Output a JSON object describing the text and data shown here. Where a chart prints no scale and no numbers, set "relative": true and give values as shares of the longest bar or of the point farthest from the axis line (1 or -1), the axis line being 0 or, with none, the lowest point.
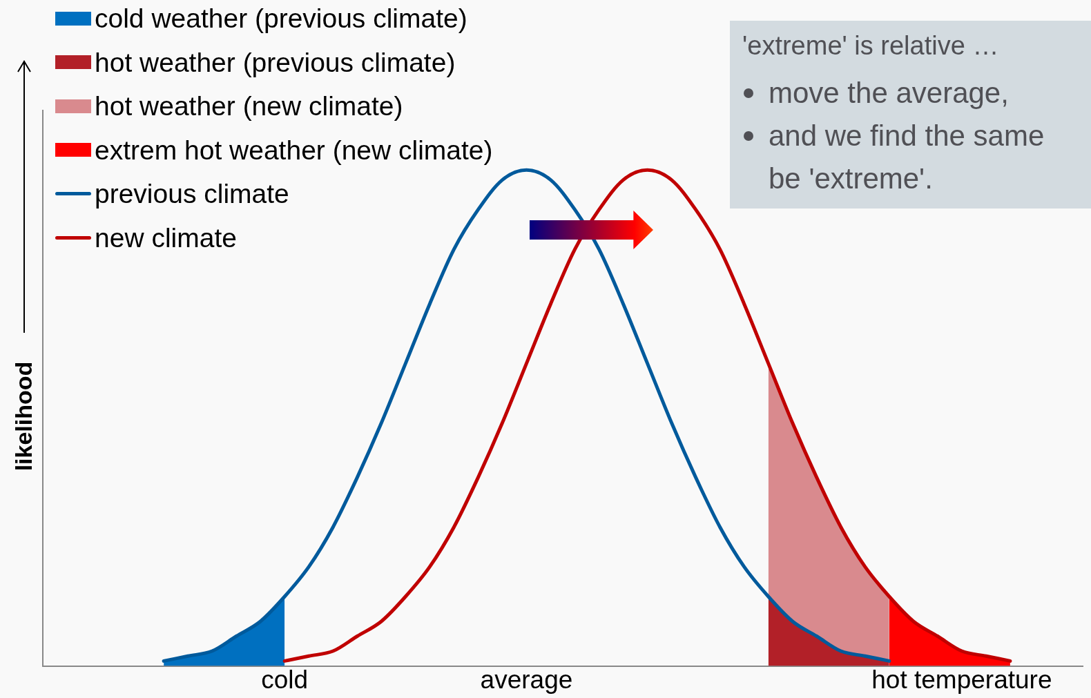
{
  "chart_data": {
    "type": "line",
    "xlabel": null,
    "ylabel": "likelihood",
    "relative": true,
    "legend": "top left",
    "grid": false,
    "marker": "none",
    "line_style": "solid",
    "categories": [
      null,
      null,
      null,
      null,
      null,
      null,
      null,
      null,
      null,
      null,
      "cold",
      null,
      null,
      null,
      null,
      null,
      null,
      null,
      null,
      null,
      "average",
      null,
      null,
      null,
      null,
      null,
      null,
      null,
      null,
      null,
      null,
      null,
      null,
      null,
      null,
      null,
      null,
      null,
      "hot temperature",
      null,
      null,
      null,
      null,
      null
    ],
    "series": [
      {
        "name": "cold weather (previous climate)",
        "type": "area",
        "color": "#0070c0",
        "values": [
          null,
          null,
          null,
          null,
          null,
          0.01,
          0.02,
          0.03,
          0.06,
          0.09,
          0.14,
          null,
          null,
          null,
          null,
          null,
          null,
          null,
          null,
          null,
          null,
          null,
          null,
          null,
          null,
          null,
          null,
          null,
          null,
          null,
          null,
          null,
          null,
          null,
          null,
          null,
          null,
          null,
          null,
          null,
          null,
          null,
          null,
          null
        ]
      },
      {
        "name": "hot weather (previous climate)",
        "type": "area",
        "color": "#b22028",
        "values": [
          null,
          null,
          null,
          null,
          null,
          null,
          null,
          null,
          null,
          null,
          null,
          null,
          null,
          null,
          null,
          null,
          null,
          null,
          null,
          null,
          null,
          null,
          null,
          null,
          null,
          null,
          null,
          null,
          null,
          null,
          0.14,
          0.09,
          0.06,
          0.03,
          0.02,
          0.01,
          null,
          null,
          null,
          null,
          null,
          null,
          null,
          null
        ]
      },
      {
        "name": "hot weather (new climate)",
        "type": "area",
        "color": "#d98a8e",
        "values": [
          null,
          null,
          null,
          null,
          null,
          null,
          null,
          null,
          null,
          null,
          null,
          null,
          null,
          null,
          null,
          null,
          null,
          null,
          null,
          null,
          null,
          null,
          null,
          null,
          null,
          null,
          null,
          null,
          null,
          null,
          0.61,
          0.49,
          0.38,
          0.28,
          0.2,
          0.14,
          null,
          null,
          null,
          null,
          null,
          null,
          null,
          null
        ]
      },
      {
        "name": "extrem hot weather (new climate)",
        "type": "area",
        "color": "#ff0000",
        "values": [
          null,
          null,
          null,
          null,
          null,
          null,
          null,
          null,
          null,
          null,
          null,
          null,
          null,
          null,
          null,
          null,
          null,
          null,
          null,
          null,
          null,
          null,
          null,
          null,
          null,
          null,
          null,
          null,
          null,
          null,
          null,
          null,
          null,
          null,
          null,
          0.14,
          0.09,
          0.06,
          0.03,
          0.02,
          0.01,
          null,
          null,
          null
        ]
      },
      {
        "name": "previous climate",
        "type": "line",
        "color": "#005a9c",
        "values": [
          null,
          null,
          null,
          null,
          null,
          0.01,
          0.02,
          0.03,
          0.06,
          0.09,
          0.14,
          0.2,
          0.28,
          0.38,
          0.49,
          0.61,
          0.73,
          0.84,
          0.92,
          0.98,
          1,
          0.98,
          0.92,
          0.84,
          0.73,
          0.61,
          0.49,
          0.38,
          0.28,
          0.2,
          0.14,
          0.09,
          0.06,
          0.03,
          0.02,
          0.01,
          null,
          null,
          null,
          null,
          null,
          null,
          null,
          null
        ]
      },
      {
        "name": "new climate",
        "type": "line",
        "color": "#c00000",
        "values": [
          null,
          null,
          null,
          null,
          null,
          null,
          null,
          null,
          null,
          null,
          0.01,
          0.02,
          0.03,
          0.06,
          0.09,
          0.14,
          0.2,
          0.28,
          0.38,
          0.49,
          0.61,
          0.73,
          0.84,
          0.92,
          0.98,
          1,
          0.98,
          0.92,
          0.84,
          0.73,
          0.61,
          0.49,
          0.38,
          0.28,
          0.2,
          0.14,
          0.09,
          0.06,
          0.03,
          0.02,
          0.01,
          null,
          null,
          null
        ]
      }
    ],
    "annotations": [
      "'extreme' is relative …",
      "move the average,",
      "and we find the same be 'extreme'."
    ]
  }
}
